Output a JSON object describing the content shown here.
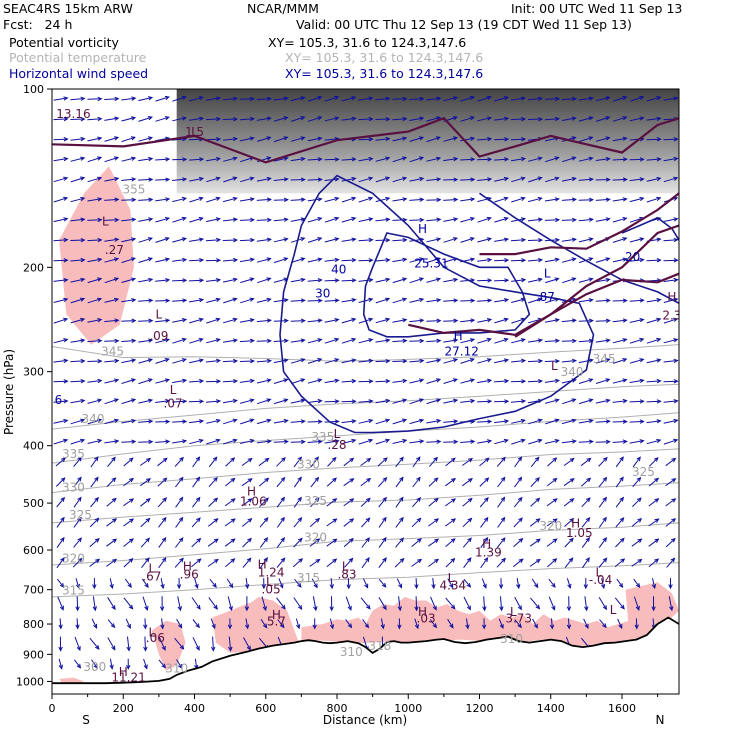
{
  "header": {
    "model": "SEAC4RS 15km ARW",
    "center": "NCAR/MMM",
    "init": "Init: 00 UTC Wed 11 Sep 13",
    "fcst": "Fcst:   24 h",
    "valid": "Valid: 00 UTC Thu 12 Sep 13 (19 CDT Wed 11 Sep 13)",
    "fields": [
      {
        "name": "Potential vorticity",
        "xy": "XY= 105.3, 31.6 to 124.3,147.6",
        "color": "#000000"
      },
      {
        "name": "Potential temperature",
        "xy": "XY= 105.3, 31.6 to 124.3,147.6",
        "color": "#b4b4b4"
      },
      {
        "name": "Horizontal wind speed",
        "xy": "XY= 105.3, 31.6 to 124.3,147.6",
        "color": "#0000a0"
      }
    ]
  },
  "chart_data": {
    "type": "cross-section",
    "xlabel": "Distance (km)",
    "ylabel": "Pressure (hPa)",
    "xlim": [
      0,
      1760
    ],
    "ylim": [
      1050,
      100
    ],
    "x_ticks": [
      "0",
      "200",
      "400",
      "600",
      "800",
      "1000",
      "1200",
      "1400",
      "1600"
    ],
    "x_tick_values": [
      0,
      200,
      400,
      600,
      800,
      1000,
      1200,
      1400,
      1600
    ],
    "y_ticks": [
      "100",
      "200",
      "300",
      "400",
      "500",
      "600",
      "700",
      "800",
      "900",
      "1000"
    ],
    "y_tick_values": [
      100,
      200,
      300,
      400,
      500,
      600,
      700,
      800,
      900,
      1000
    ],
    "x_end_labels": {
      "left": "S",
      "right": "N"
    },
    "terrain": {
      "x": [
        0,
        50,
        100,
        150,
        200,
        250,
        300,
        330,
        350,
        380,
        420,
        450,
        500,
        550,
        580,
        620,
        650,
        680,
        700,
        720,
        740,
        760,
        780,
        800,
        830,
        860,
        880,
        900,
        920,
        940,
        960,
        980,
        1000,
        1020,
        1050,
        1080,
        1100,
        1130,
        1160,
        1190,
        1220,
        1250,
        1280,
        1310,
        1340,
        1370,
        1400,
        1430,
        1460,
        1490,
        1520,
        1550,
        1580,
        1610,
        1640,
        1670,
        1700,
        1730,
        1760
      ],
      "p": [
        1007,
        1007,
        1007,
        1007,
        1005,
        1002,
        998,
        990,
        975,
        960,
        945,
        925,
        905,
        890,
        880,
        870,
        865,
        860,
        855,
        852,
        855,
        860,
        862,
        860,
        855,
        862,
        875,
        895,
        880,
        858,
        855,
        860,
        860,
        858,
        855,
        850,
        848,
        858,
        862,
        858,
        850,
        845,
        840,
        855,
        860,
        855,
        850,
        855,
        870,
        875,
        870,
        862,
        860,
        855,
        850,
        835,
        800,
        780,
        800
      ]
    },
    "theta_contours": [
      {
        "label": "345",
        "x": [
          0,
          200,
          400,
          600,
          800,
          1000,
          1200,
          1400,
          1600,
          1760
        ],
        "p": [
          272,
          284,
          283,
          285,
          288,
          286,
          283,
          278,
          274,
          270
        ]
      },
      {
        "label": "340",
        "x": [
          0,
          200,
          400,
          600,
          800,
          1000,
          1200,
          1400,
          1600,
          1760
        ],
        "p": [
          375,
          364,
          355,
          346,
          340,
          336,
          330,
          324,
          318,
          315
        ]
      },
      {
        "label": "335",
        "x": [
          0,
          200,
          400,
          600,
          800,
          1000,
          1200,
          1400,
          1600,
          1760
        ],
        "p": [
          428,
          413,
          400,
          392,
          385,
          378,
          372,
          364,
          358,
          352
        ]
      },
      {
        "label": "330",
        "x": [
          0,
          200,
          400,
          600,
          800,
          1000,
          1200,
          1400,
          1600,
          1760
        ],
        "p": [
          480,
          465,
          455,
          444,
          436,
          430,
          423,
          414,
          410,
          405
        ]
      },
      {
        "label": "325",
        "x": [
          0,
          200,
          400,
          600,
          800,
          1000,
          1200,
          1400,
          1600,
          1760
        ],
        "p": [
          540,
          528,
          518,
          508,
          498,
          494,
          485,
          474,
          468,
          462
        ]
      },
      {
        "label": "320",
        "x": [
          0,
          200,
          400,
          600,
          800,
          1000,
          1200,
          1400,
          1600,
          1760
        ],
        "p": [
          636,
          625,
          611,
          597,
          580,
          574,
          567,
          556,
          549,
          540
        ]
      },
      {
        "label": "315",
        "x": [
          0,
          200,
          400,
          600,
          800,
          1000,
          1200,
          1400,
          1600,
          1760
        ],
        "p": [
          720,
          712,
          700,
          686,
          673,
          667,
          655,
          645,
          638,
          630
        ]
      }
    ],
    "theta_labels": [
      {
        "t": "355",
        "x": 230,
        "p": 150
      },
      {
        "t": "345",
        "x": 170,
        "p": 282
      },
      {
        "t": "340",
        "x": 115,
        "p": 366
      },
      {
        "t": "335",
        "x": 60,
        "p": 420
      },
      {
        "t": "330",
        "x": 60,
        "p": 478
      },
      {
        "t": "325",
        "x": 80,
        "p": 532
      },
      {
        "t": "330",
        "x": 720,
        "p": 437
      },
      {
        "t": "335",
        "x": 760,
        "p": 393
      },
      {
        "t": "325",
        "x": 740,
        "p": 504
      },
      {
        "t": "320",
        "x": 740,
        "p": 580
      },
      {
        "t": "315",
        "x": 720,
        "p": 680
      },
      {
        "t": "320",
        "x": 60,
        "p": 630
      },
      {
        "t": "315",
        "x": 60,
        "p": 713
      },
      {
        "t": "325",
        "x": 1660,
        "p": 450
      },
      {
        "t": "320",
        "x": 1400,
        "p": 555
      },
      {
        "t": "340",
        "x": 1460,
        "p": 305
      },
      {
        "t": "345",
        "x": 1550,
        "p": 290
      },
      {
        "t": "310",
        "x": 840,
        "p": 905
      },
      {
        "t": "318",
        "x": 920,
        "p": 885
      },
      {
        "t": "310",
        "x": 350,
        "p": 965
      },
      {
        "t": "300",
        "x": 120,
        "p": 960
      },
      {
        "t": "310",
        "x": 1290,
        "p": 862
      }
    ],
    "pv_contours": [
      {
        "x": [
          0,
          200,
          400,
          600,
          800,
          1000,
          1100,
          1200,
          1300,
          1400,
          1500,
          1600,
          1700,
          1760
        ],
        "p": [
          124,
          125,
          120,
          133,
          122,
          118,
          112,
          130,
          125,
          120,
          124,
          128,
          115,
          112
        ]
      },
      {
        "x": [
          1000,
          1100,
          1200,
          1300,
          1400,
          1500,
          1600,
          1700,
          1760
        ],
        "p": [
          250,
          258,
          255,
          260,
          240,
          222,
          210,
          212,
          205
        ]
      },
      {
        "x": [
          1200,
          1300,
          1400,
          1500,
          1600,
          1700,
          1760
        ],
        "p": [
          190,
          190,
          185,
          186,
          174,
          160,
          150
        ]
      },
      {
        "x": [
          1300,
          1400,
          1500,
          1600,
          1700,
          1760
        ],
        "p": [
          262,
          240,
          215,
          200,
          175,
          170
        ]
      }
    ],
    "pv_hilo": [
      {
        "t": "13.16",
        "x": 60,
        "p": 112
      },
      {
        "t": "L",
        "x": 150,
        "p": 170
      },
      {
        "t": ".27",
        "x": 175,
        "p": 190
      },
      {
        "t": "L",
        "x": 400,
        "p": 120
      },
      {
        "t": "1.5",
        "x": 400,
        "p": 120
      },
      {
        "t": "L",
        "x": 300,
        "p": 244
      },
      {
        "t": ".09",
        "x": 300,
        "p": 265
      },
      {
        "t": "L",
        "x": 340,
        "p": 327
      },
      {
        "t": ".07",
        "x": 340,
        "p": 345
      },
      {
        "t": "L",
        "x": 800,
        "p": 388
      },
      {
        "t": ".28",
        "x": 800,
        "p": 405
      },
      {
        "t": "H",
        "x": 560,
        "p": 485
      },
      {
        "t": "1.06",
        "x": 565,
        "p": 505
      },
      {
        "t": "H",
        "x": 380,
        "p": 650
      },
      {
        "t": ".96",
        "x": 385,
        "p": 670
      },
      {
        "t": "L",
        "x": 280,
        "p": 655
      },
      {
        "t": ".67",
        "x": 280,
        "p": 675
      },
      {
        "t": "H",
        "x": 590,
        "p": 645
      },
      {
        "t": "1.24",
        "x": 615,
        "p": 665
      },
      {
        "t": "L",
        "x": 823,
        "p": 650
      },
      {
        "t": ".83",
        "x": 828,
        "p": 670
      },
      {
        "t": "H",
        "x": 1220,
        "p": 595
      },
      {
        "t": "1.39",
        "x": 1225,
        "p": 615
      },
      {
        "t": "H",
        "x": 1470,
        "p": 550
      },
      {
        "t": "1.05",
        "x": 1480,
        "p": 570
      },
      {
        "t": "L",
        "x": 1535,
        "p": 665
      },
      {
        "t": "-.04",
        "x": 1540,
        "p": 685
      },
      {
        "t": "L",
        "x": 1120,
        "p": 680
      },
      {
        "t": "4.34",
        "x": 1125,
        "p": 700
      },
      {
        "t": "L",
        "x": 610,
        "p": 690
      },
      {
        "t": ".05",
        "x": 615,
        "p": 710
      },
      {
        "t": "H",
        "x": 1040,
        "p": 775
      },
      {
        "t": ".03",
        "x": 1050,
        "p": 795
      },
      {
        "t": "L",
        "x": 1295,
        "p": 775
      },
      {
        "t": "3.73",
        "x": 1310,
        "p": 795
      },
      {
        "t": "H",
        "x": 630,
        "p": 785
      },
      {
        "t": "5.7",
        "x": 630,
        "p": 805
      },
      {
        "t": "L",
        "x": 1575,
        "p": 770
      },
      {
        "t": "L",
        "x": 280,
        "p": 840
      },
      {
        "t": ".06",
        "x": 290,
        "p": 858
      },
      {
        "t": "H",
        "x": 200,
        "p": 980
      },
      {
        "t": "11.21",
        "x": 215,
        "p": 1000
      },
      {
        "t": "H",
        "x": 1740,
        "p": 228
      },
      {
        "t": "2.3",
        "x": 1740,
        "p": 245
      },
      {
        "t": "L",
        "x": 1410,
        "p": 298
      }
    ],
    "ws_contours": [
      {
        "label": "30",
        "x": [
          750,
          700,
          680,
          650,
          640,
          650,
          700,
          780,
          850,
          900,
          1000,
          1100,
          1200,
          1300,
          1400,
          1500,
          1520,
          1480,
          1400,
          1300,
          1200,
          1100,
          1000,
          900,
          800,
          750
        ],
        "p": [
          150,
          170,
          190,
          220,
          260,
          300,
          330,
          365,
          380,
          380,
          378,
          372,
          360,
          350,
          330,
          298,
          260,
          230,
          225,
          220,
          215,
          200,
          170,
          150,
          140,
          150
        ]
      },
      {
        "label": "40",
        "x": [
          900,
          880,
          875,
          890,
          940,
          1000,
          1100,
          1200,
          1300,
          1340,
          1320,
          1280,
          1200,
          1100,
          1000,
          940,
          900
        ],
        "p": [
          200,
          215,
          240,
          255,
          262,
          262,
          258,
          258,
          255,
          240,
          220,
          200,
          200,
          190,
          178,
          175,
          200
        ]
      },
      {
        "label": "20",
        "x": [
          1200,
          1300,
          1400,
          1500,
          1600,
          1700,
          1760
        ],
        "p": [
          150,
          165,
          180,
          195,
          210,
          220,
          230
        ]
      },
      {
        "label": "20",
        "x": [
          1600,
          1650,
          1700,
          1740,
          1760
        ],
        "p": [
          175,
          170,
          165,
          172,
          180
        ]
      }
    ],
    "ws_labels": [
      {
        "t": "30",
        "x": 760,
        "p": 225
      },
      {
        "t": "40",
        "x": 805,
        "p": 205
      },
      {
        "t": "25.31",
        "x": 1065,
        "p": 200
      },
      {
        "t": "H",
        "x": 1040,
        "p": 175
      },
      {
        "t": "L",
        "x": 1390,
        "p": 208
      },
      {
        "t": ".87",
        "x": 1385,
        "p": 228
      },
      {
        "t": "H",
        "x": 1140,
        "p": 265
      },
      {
        "t": "27.12",
        "x": 1150,
        "p": 282
      },
      {
        "t": "20",
        "x": 1630,
        "p": 195
      },
      {
        "t": "6",
        "x": 18,
        "p": 340
      }
    ],
    "tropopause_shading": {
      "x": [
        350,
        1760
      ],
      "p_top": 100,
      "p_bottom": 150
    },
    "pv_shading": [
      {
        "x": [
          20,
          90,
          160,
          220,
          230,
          190,
          110,
          40,
          20
        ],
        "p": [
          180,
          150,
          135,
          160,
          200,
          250,
          270,
          240,
          180
        ]
      },
      {
        "x": [
          280,
          320,
          360,
          375,
          350,
          320,
          300,
          280
        ],
        "p": [
          820,
          790,
          800,
          860,
          940,
          960,
          900,
          820
        ]
      },
      {
        "x": [
          450,
          500,
          540,
          560,
          580,
          620,
          660,
          690,
          700,
          650,
          600,
          550,
          500,
          460,
          450
        ],
        "p": [
          780,
          760,
          742,
          735,
          720,
          730,
          760,
          850,
          860,
          870,
          880,
          890,
          895,
          860,
          780
        ]
      },
      {
        "x": [
          700,
          760,
          800,
          830,
          860,
          880,
          900,
          930,
          960,
          990,
          1020,
          1050,
          1080,
          1110,
          1140,
          1170,
          1200,
          1230,
          1260,
          1290,
          1320,
          1350,
          1380,
          1410,
          1440,
          1470,
          1500,
          1530,
          1560,
          1590,
          1620,
          1650,
          1680,
          1710,
          1740,
          1700,
          1660,
          1620,
          1580,
          1540,
          1500,
          1460,
          1420,
          1380,
          1340,
          1300,
          1260,
          1220,
          1180,
          1140,
          1100,
          1060,
          1020,
          980,
          940,
          900,
          860,
          820,
          780,
          740,
          700
        ],
        "p": [
          810,
          800,
          785,
          790,
          780,
          800,
          760,
          740,
          745,
          720,
          730,
          730,
          750,
          740,
          760,
          770,
          760,
          790,
          770,
          780,
          770,
          800,
          770,
          790,
          780,
          790,
          800,
          790,
          810,
          800,
          790,
          780,
          800,
          820,
          800,
          860,
          860,
          858,
          860,
          865,
          870,
          872,
          852,
          850,
          855,
          858,
          860,
          860,
          852,
          850,
          855,
          858,
          860,
          862,
          856,
          860,
          862,
          858,
          855,
          852,
          855
        ]
      },
      {
        "x": [
          20,
          60,
          90,
          60,
          30
        ],
        "p": [
          990,
          985,
          1000,
          1015,
          1010
        ]
      },
      {
        "x": [
          1610,
          1700,
          1740,
          1760,
          1720,
          1660,
          1620,
          1610
        ],
        "p": [
          700,
          680,
          710,
          760,
          800,
          840,
          830,
          700
        ]
      }
    ],
    "wind_vectors": {
      "description": "Horizontal wind vectors on a regular grid",
      "rows": 30,
      "cols": 37
    }
  }
}
